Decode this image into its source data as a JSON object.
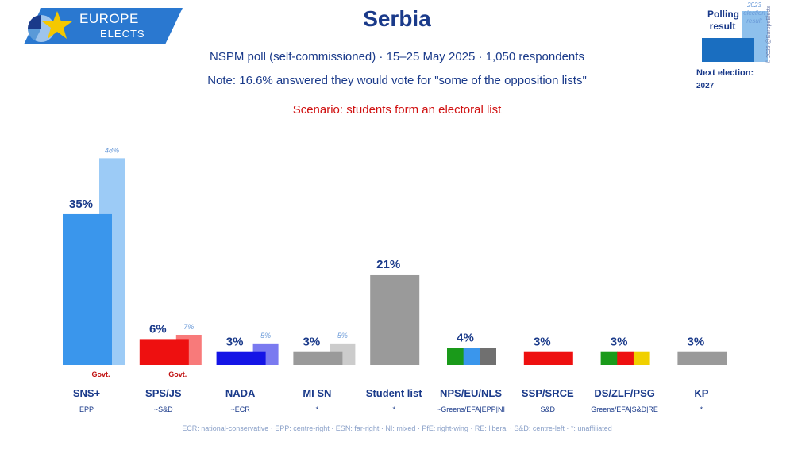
{
  "logo": {
    "line1": "EUROPE",
    "line2": "ELECTS"
  },
  "header": {
    "title": "Serbia",
    "subtitle": "NSPM poll (self-commissioned) · 15–25 May 2025 · 1,050 respondents",
    "note": "Note: 16.6% answered they would vote for \"some of the opposition lists\"",
    "scenario": "Scenario: students form an electoral list"
  },
  "legend": {
    "polling": "Polling result",
    "previous": "2023 election result",
    "next_election_label": "Next election:",
    "next_election_year": "2027",
    "copyright": "© 2025 @EuropeElects",
    "poll_color": "#1a6ec0",
    "prev_color": "#8ec0ec"
  },
  "footer": "ECR: national-conservative · EPP: centre-right · ESN: far-right · NI: mixed · PfE: right-wing · RE: liberal · S&D: centre-left · *: unaffiliated",
  "chart_data": {
    "type": "bar",
    "ylim": [
      0,
      50
    ],
    "categories": [
      "SNS+",
      "SPS/JS",
      "NADA",
      "MI SN",
      "Student list",
      "NPS/EU/NLS",
      "SSP/SRCE",
      "DS/ZLF/PSG",
      "KP"
    ],
    "groups": [
      "EPP",
      "~S&D",
      "~ECR",
      "*",
      "*",
      "~Greens/EFA|EPP|NI",
      "S&D",
      "Greens/EFA|S&D|RE",
      "*"
    ],
    "series": [
      {
        "name": "Polling result",
        "values": [
          35,
          6,
          3,
          3,
          21,
          4,
          3,
          3,
          3
        ]
      },
      {
        "name": "2023 election result",
        "values": [
          48,
          7,
          5,
          5,
          null,
          null,
          null,
          null,
          null
        ]
      }
    ],
    "value_labels": [
      "35%",
      "6%",
      "3%",
      "3%",
      "21%",
      "4%",
      "3%",
      "3%",
      "3%"
    ],
    "prev_labels": [
      "48%",
      "7%",
      "5%",
      "5%",
      null,
      null,
      null,
      null,
      null
    ],
    "govt": [
      true,
      true,
      false,
      false,
      false,
      false,
      false,
      false,
      false
    ],
    "govt_label": "Govt.",
    "colors": [
      [
        "#3a96ec"
      ],
      [
        "#ee1010"
      ],
      [
        "#1414e6"
      ],
      [
        "#9a9a9a"
      ],
      [
        "#9a9a9a"
      ],
      [
        "#1a9a1a",
        "#3a96ec",
        "#707070"
      ],
      [
        "#ee1010"
      ],
      [
        "#1a9a1a",
        "#ee1010",
        "#f0d000"
      ],
      [
        "#9a9a9a"
      ]
    ],
    "prev_colors": [
      "#9ccbf6",
      "#f87a7a",
      "#7a7af0",
      "#cccccc",
      null,
      null,
      null,
      null,
      null
    ]
  }
}
